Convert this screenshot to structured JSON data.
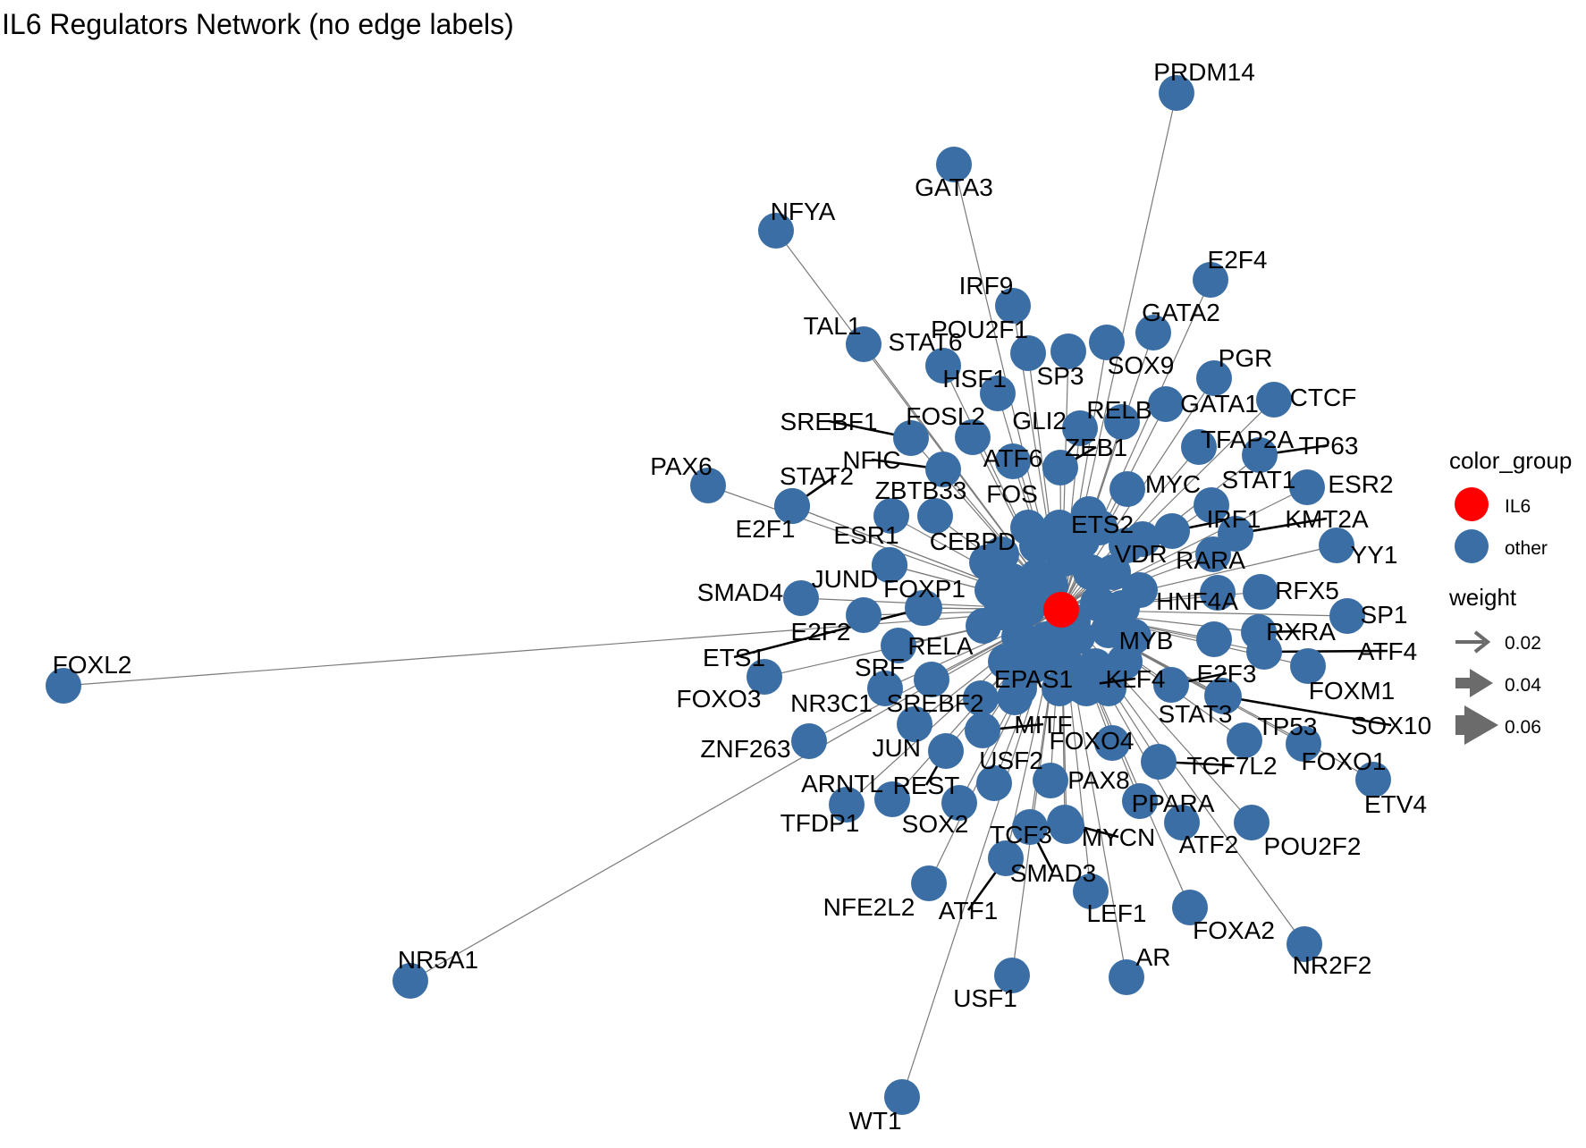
{
  "title": "IL6 Regulators Network (no edge labels)",
  "center_node": {
    "id": "IL6",
    "color_group": "IL6",
    "color": "#ff0000"
  },
  "colors": {
    "IL6": "#ff0000",
    "other": "#3a6ea5",
    "edge": "#7a7a7a"
  },
  "legend": {
    "color_title": "color_group",
    "color_items": [
      {
        "label": "IL6",
        "color": "#ff0000"
      },
      {
        "label": "other",
        "color": "#3a6ea5"
      }
    ],
    "weight_title": "weight",
    "weight_items": [
      {
        "label": "0.02",
        "value": 0.02
      },
      {
        "label": "0.04",
        "value": 0.04
      },
      {
        "label": "0.06",
        "value": 0.06
      }
    ]
  },
  "regulators": [
    "PRDM14",
    "GATA3",
    "NFYA",
    "E2F4",
    "IRF9",
    "GATA2",
    "TAL1",
    "STAT6",
    "POU2F1",
    "SOX9",
    "PGR",
    "HSF1",
    "SP3",
    "GATA1",
    "CTCF",
    "SREBF1",
    "FOSL2",
    "GLI2",
    "RELB",
    "TFAP2A",
    "TP63",
    "NFIC",
    "ATF6",
    "ZEB1",
    "PAX6",
    "STAT2",
    "MYC",
    "STAT1",
    "ESR2",
    "ZBTB33",
    "FOS",
    "E2F1",
    "IRF1",
    "KMT2A",
    "ETS2",
    "ESR1",
    "CEBPD",
    "YY1",
    "VDR",
    "RARA",
    "JUND",
    "SMAD4",
    "FOXP1",
    "RFX5",
    "HNF4A",
    "SP1",
    "E2F2",
    "RXRA",
    "ETS1",
    "MYB",
    "ATF4",
    "FOXL2",
    "RELA",
    "SRF",
    "E2F3",
    "FOXM1",
    "FOXO3",
    "NR3C1",
    "EPAS1",
    "KLF4",
    "SREBF2",
    "STAT3",
    "SOX10",
    "ZNF263",
    "MITF",
    "TP53",
    "FOXO4",
    "JUN",
    "USF2",
    "TCF7L2",
    "FOXO1",
    "ARNTL",
    "REST",
    "PAX8",
    "ETV4",
    "PPARA",
    "TFDP1",
    "SOX2",
    "MYCN",
    "TCF3",
    "ATF2",
    "POU2F2",
    "SMAD3",
    "NFE2L2",
    "ATF1",
    "LEF1",
    "FOXA2",
    "NR2F2",
    "AR",
    "NR5A1",
    "USF1",
    "WT1"
  ]
}
